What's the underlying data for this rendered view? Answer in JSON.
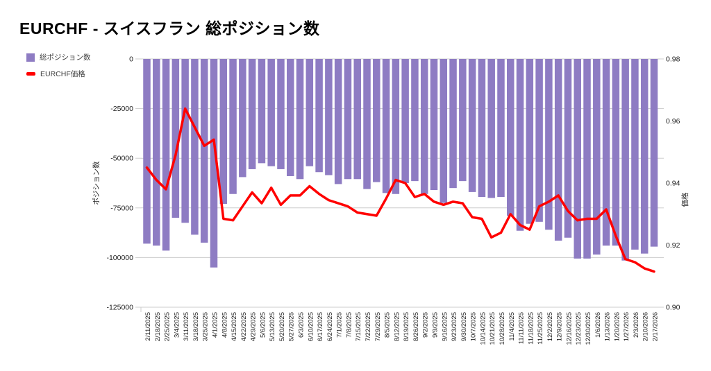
{
  "title": "EURCHF - スイスフラン 総ポジション数",
  "legend": {
    "items": [
      {
        "label": "総ポジション数",
        "color": "#8e7cc3",
        "type": "bar"
      },
      {
        "label": "EURCHF価格",
        "color": "#ff0000",
        "type": "line"
      }
    ]
  },
  "chart_data": {
    "type": "combo-bar-line",
    "title": "EURCHF - スイスフラン 総ポジション数",
    "grid": true,
    "legend_position": "top-left",
    "categories": [
      "2/11/2025",
      "2/18/2025",
      "2/25/2025",
      "3/4/2025",
      "3/11/2025",
      "3/18/2025",
      "3/25/2025",
      "4/1/2025",
      "4/8/2025",
      "4/15/2025",
      "4/22/2025",
      "4/29/2025",
      "5/6/2025",
      "5/13/2025",
      "5/20/2025",
      "5/27/2025",
      "6/3/2025",
      "6/10/2025",
      "6/17/2025",
      "6/24/2025",
      "7/1/2025",
      "7/8/2025",
      "7/15/2025",
      "7/22/2025",
      "7/29/2025",
      "8/5/2025",
      "8/12/2025",
      "8/19/2025",
      "8/26/2025",
      "9/2/2025",
      "9/9/2025",
      "9/16/2025",
      "9/23/2025",
      "9/30/2025",
      "10/7/2025",
      "10/14/2025",
      "10/21/2025",
      "10/28/2025",
      "11/4/2025",
      "11/11/2025",
      "11/18/2025",
      "11/25/2025",
      "12/2/2025",
      "12/9/2025",
      "12/16/2025",
      "12/23/2025",
      "12/30/2025",
      "1/6/2026",
      "1/13/2026",
      "1/20/2026",
      "1/27/2026",
      "2/3/2026",
      "2/10/2026",
      "2/17/2026"
    ],
    "series": [
      {
        "name": "総ポジション数",
        "type": "bar",
        "y_axis": "left",
        "color": "#8e7cc3",
        "values": [
          -93000,
          -94000,
          -96500,
          -80000,
          -82500,
          -88500,
          -92500,
          -105000,
          -73000,
          -68000,
          -59500,
          -55500,
          -52500,
          -54000,
          -55500,
          -59000,
          -60500,
          -54000,
          -57000,
          -58500,
          -63000,
          -60500,
          -60500,
          -65500,
          -62000,
          -67500,
          -68000,
          -62500,
          -61500,
          -68000,
          -66000,
          -72500,
          -65000,
          -61500,
          -67000,
          -69500,
          -70000,
          -69500,
          -79000,
          -86500,
          -83000,
          -82000,
          -86000,
          -91500,
          -90000,
          -100500,
          -100500,
          -98500,
          -94000,
          -94000,
          -101500,
          -96000,
          -98000,
          -94500
        ]
      },
      {
        "name": "EURCHF価格",
        "type": "line",
        "y_axis": "right",
        "color": "#ff0000",
        "values": [
          0.945,
          0.941,
          0.938,
          0.949,
          0.964,
          0.958,
          0.952,
          0.954,
          0.9285,
          0.928,
          0.9325,
          0.937,
          0.9335,
          0.9385,
          0.933,
          0.936,
          0.936,
          0.939,
          0.9365,
          0.9345,
          0.9335,
          0.9325,
          0.9305,
          0.93,
          0.9295,
          0.935,
          0.941,
          0.94,
          0.9355,
          0.9365,
          0.934,
          0.933,
          0.934,
          0.9335,
          0.929,
          0.9285,
          0.9225,
          0.924,
          0.93,
          0.9265,
          0.925,
          0.9325,
          0.934,
          0.936,
          0.931,
          0.928,
          0.9285,
          0.9285,
          0.9315,
          0.923,
          0.9155,
          0.9145,
          0.9125,
          0.9115
        ]
      }
    ],
    "left_axis": {
      "title": "ポジション数",
      "ticks": [
        "0",
        "-25000",
        "-50000",
        "-75000",
        "-100000",
        "-125000"
      ],
      "min": -125000,
      "max": 0
    },
    "right_axis": {
      "title": "価格",
      "ticks": [
        "0.98",
        "0.96",
        "0.94",
        "0.92",
        "0.90"
      ],
      "min": 0.9,
      "max": 0.98
    },
    "grid_color": "#cccccc",
    "tick_label_color": "#222222"
  }
}
